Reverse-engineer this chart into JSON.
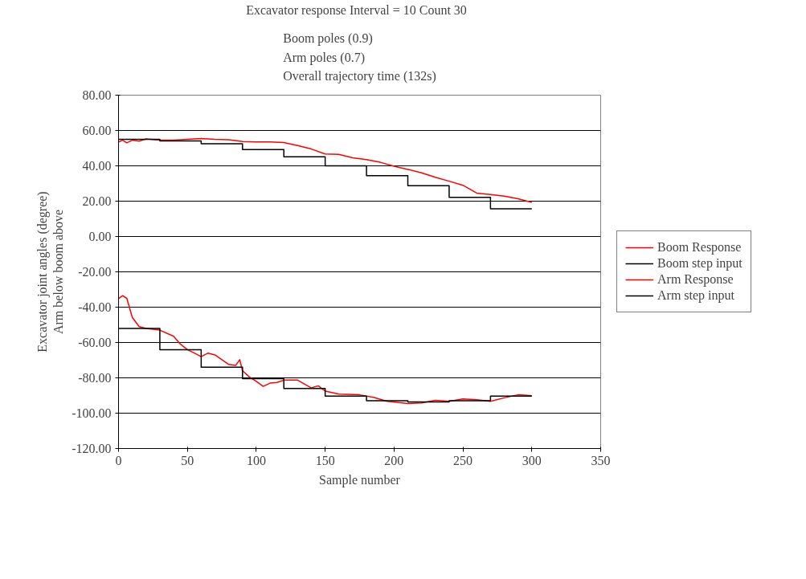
{
  "chart_data": {
    "type": "line",
    "title": "Excavator response  Interval = 10  Count 30",
    "subtitle": "Boom poles (0.9)\nArm poles (0.7)\nOverall trajectory time (132s)",
    "xlabel": "Sample number",
    "ylabel": "Excavator joint angles (degree)\nArm below boom above",
    "xlim": [
      0,
      350
    ],
    "xticks": [
      0,
      50,
      100,
      150,
      200,
      250,
      300,
      350
    ],
    "ylim": [
      -120,
      80
    ],
    "yticks": [
      {
        "value": 80,
        "label": "80.00"
      },
      {
        "value": 60,
        "label": "60.00"
      },
      {
        "value": 40,
        "label": "40.00"
      },
      {
        "value": 20,
        "label": "20.00"
      },
      {
        "value": 0,
        "label": "0.00"
      },
      {
        "value": -20,
        "label": "-20.00"
      },
      {
        "value": -40,
        "label": "-40.00"
      },
      {
        "value": -60,
        "label": "-60.00"
      },
      {
        "value": -80,
        "label": "-80.00"
      },
      {
        "value": -100,
        "label": "-100.00"
      },
      {
        "value": -120,
        "label": "-120.00"
      }
    ],
    "grid": "y",
    "legend": "right",
    "marker": "none",
    "line_style": "solid",
    "series": [
      {
        "name": "Boom Response",
        "color": "#ff0000",
        "x": [
          0,
          3,
          6,
          10,
          15,
          20,
          30,
          40,
          50,
          60,
          70,
          80,
          88,
          90,
          100,
          110,
          120,
          130,
          140,
          150,
          160,
          170,
          180,
          190,
          200,
          210,
          220,
          230,
          240,
          250,
          260,
          270,
          280,
          290,
          300
        ],
        "values": [
          53.5,
          54.5,
          53,
          54.5,
          54,
          55.2,
          54.5,
          54.5,
          55,
          55.4,
          55,
          54.8,
          54,
          53.8,
          53.5,
          53.5,
          53.2,
          51.5,
          49.5,
          46.7,
          46.5,
          44.5,
          43.5,
          42,
          39.8,
          38,
          36,
          33.5,
          31.3,
          29,
          24.6,
          23.7,
          22.8,
          21.4,
          19.3
        ]
      },
      {
        "name": "Boom step input",
        "color": "#000000",
        "type": "step",
        "x": [
          0,
          30,
          60,
          90,
          120,
          150,
          180,
          210,
          240,
          270,
          300
        ],
        "values": [
          55,
          54.1,
          52.5,
          49.2,
          45.1,
          40,
          34.4,
          28.7,
          22.2,
          15.7,
          15.7
        ]
      },
      {
        "name": "Arm Response",
        "color": "#ff0000",
        "x": [
          0,
          3,
          6,
          10,
          15,
          20,
          30,
          40,
          45,
          50,
          55,
          60,
          65,
          70,
          75,
          80,
          85,
          88,
          90,
          95,
          100,
          105,
          110,
          115,
          120,
          130,
          140,
          145,
          150,
          160,
          175,
          185,
          195,
          210,
          220,
          230,
          240,
          250,
          260,
          270,
          280,
          290,
          300
        ],
        "values": [
          -35.2,
          -33.5,
          -35,
          -45.8,
          -51,
          -52,
          -53,
          -56.5,
          -61,
          -64,
          -66,
          -68,
          -66,
          -67,
          -69.7,
          -72.4,
          -73,
          -69.7,
          -76,
          -79.5,
          -82,
          -84.8,
          -83,
          -82.6,
          -81.3,
          -81.3,
          -85.7,
          -84.5,
          -87.5,
          -89.2,
          -89.6,
          -91,
          -93.3,
          -94.5,
          -94.2,
          -92.7,
          -93.3,
          -91.9,
          -92.4,
          -93.3,
          -91.3,
          -89.6,
          -90.1
        ]
      },
      {
        "name": "Arm step input",
        "color": "#000000",
        "type": "step",
        "x": [
          0,
          30,
          60,
          90,
          120,
          150,
          180,
          210,
          240,
          270,
          300
        ],
        "values": [
          -52,
          -64.1,
          -74,
          -80.5,
          -86,
          -90.3,
          -92.9,
          -93.6,
          -92.9,
          -90.3,
          -90.3
        ]
      }
    ]
  }
}
